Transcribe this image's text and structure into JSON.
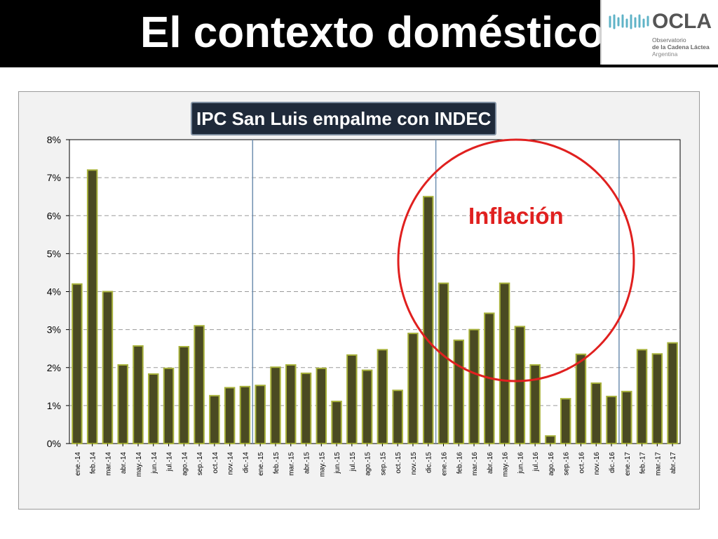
{
  "slide": {
    "title": "El contexto doméstico"
  },
  "logo": {
    "name": "OCLA",
    "line1": "Observatorio",
    "line2": "de la Cadena Láctea",
    "line3": "Argentina"
  },
  "colors": {
    "bar_fill": "#4a4a22",
    "bar_outline": "#a8b23c",
    "annotation": "#e0201f",
    "year_divider": "#6f8fb0",
    "header_bg": "#000000"
  },
  "chart_data": {
    "type": "bar",
    "title": "IPC San Luis empalme con INDEC",
    "xlabel": "",
    "ylabel": "",
    "ylim": [
      0,
      8
    ],
    "y_unit": "%",
    "yticks": [
      "0%",
      "1%",
      "2%",
      "3%",
      "4%",
      "5%",
      "6%",
      "7%",
      "8%"
    ],
    "grid": true,
    "categories": [
      "ene.-14",
      "feb.-14",
      "mar.-14",
      "abr.-14",
      "may.-14",
      "jun.-14",
      "jul.-14",
      "ago.-14",
      "sep.-14",
      "oct.-14",
      "nov.-14",
      "dic.-14",
      "ene.-15",
      "feb.-15",
      "mar.-15",
      "abr.-15",
      "may.-15",
      "jun.-15",
      "jul.-15",
      "ago.-15",
      "sep.-15",
      "oct.-15",
      "nov.-15",
      "dic.-15",
      "ene.-16",
      "feb.-16",
      "mar.-16",
      "abr.-16",
      "may.-16",
      "jun.-16",
      "jul.-16",
      "ago.-16",
      "sep.-16",
      "oct.-16",
      "nov.-16",
      "dic.-16",
      "ene.-17",
      "feb.-17",
      "mar.-17",
      "abr.-17"
    ],
    "values": [
      4.2,
      7.2,
      4.0,
      2.07,
      2.57,
      1.83,
      1.98,
      2.55,
      3.1,
      1.26,
      1.47,
      1.5,
      1.53,
      2.01,
      2.07,
      1.85,
      1.98,
      1.11,
      2.33,
      1.93,
      2.47,
      1.4,
      2.9,
      6.5,
      4.22,
      2.72,
      3.0,
      3.43,
      4.22,
      3.08,
      2.07,
      0.2,
      1.18,
      2.35,
      1.59,
      1.24,
      1.37,
      2.47,
      2.36,
      2.65
    ],
    "year_dividers_after": [
      "dic.-14",
      "dic.-15",
      "dic.-16"
    ],
    "annotation": {
      "text": "Inflación",
      "shape": "circle",
      "encircles": "dic.-15 to jul.-16"
    }
  }
}
